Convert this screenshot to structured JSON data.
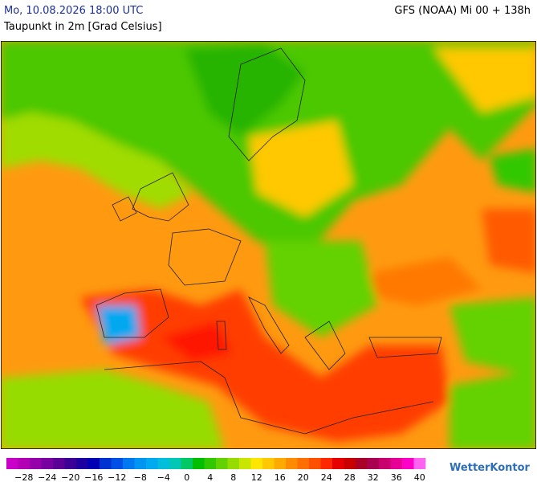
{
  "header": {
    "date": "Mo, 10.08.2026 18:00 UTC",
    "model": "GFS (NOAA) Mi 00 + 138h",
    "subtitle": "Taupunkt in 2m [Grad Celsius]"
  },
  "legend": {
    "labels": [
      "−28",
      "−24",
      "−20",
      "−16",
      "−12",
      "−8",
      "−4",
      "0",
      "4",
      "8",
      "12",
      "16",
      "20",
      "24",
      "28",
      "32",
      "36",
      "40"
    ],
    "colors": [
      "#c800c8",
      "#b400b4",
      "#9600aa",
      "#7800a0",
      "#5a0096",
      "#3c0096",
      "#1e00a0",
      "#0000b4",
      "#0032d2",
      "#0050e6",
      "#0078f0",
      "#0096f0",
      "#00aaf0",
      "#00bedc",
      "#00c8b4",
      "#00c864",
      "#00be00",
      "#32c800",
      "#64d200",
      "#96dc00",
      "#c8e600",
      "#ffe600",
      "#ffc800",
      "#ffaa00",
      "#ff8c00",
      "#ff6e00",
      "#ff5000",
      "#ff2800",
      "#e60000",
      "#c80000",
      "#aa0028",
      "#aa0050",
      "#c8006e",
      "#e60096",
      "#ff00c8",
      "#ff64f0"
    ]
  },
  "logo": "WetterKontor"
}
